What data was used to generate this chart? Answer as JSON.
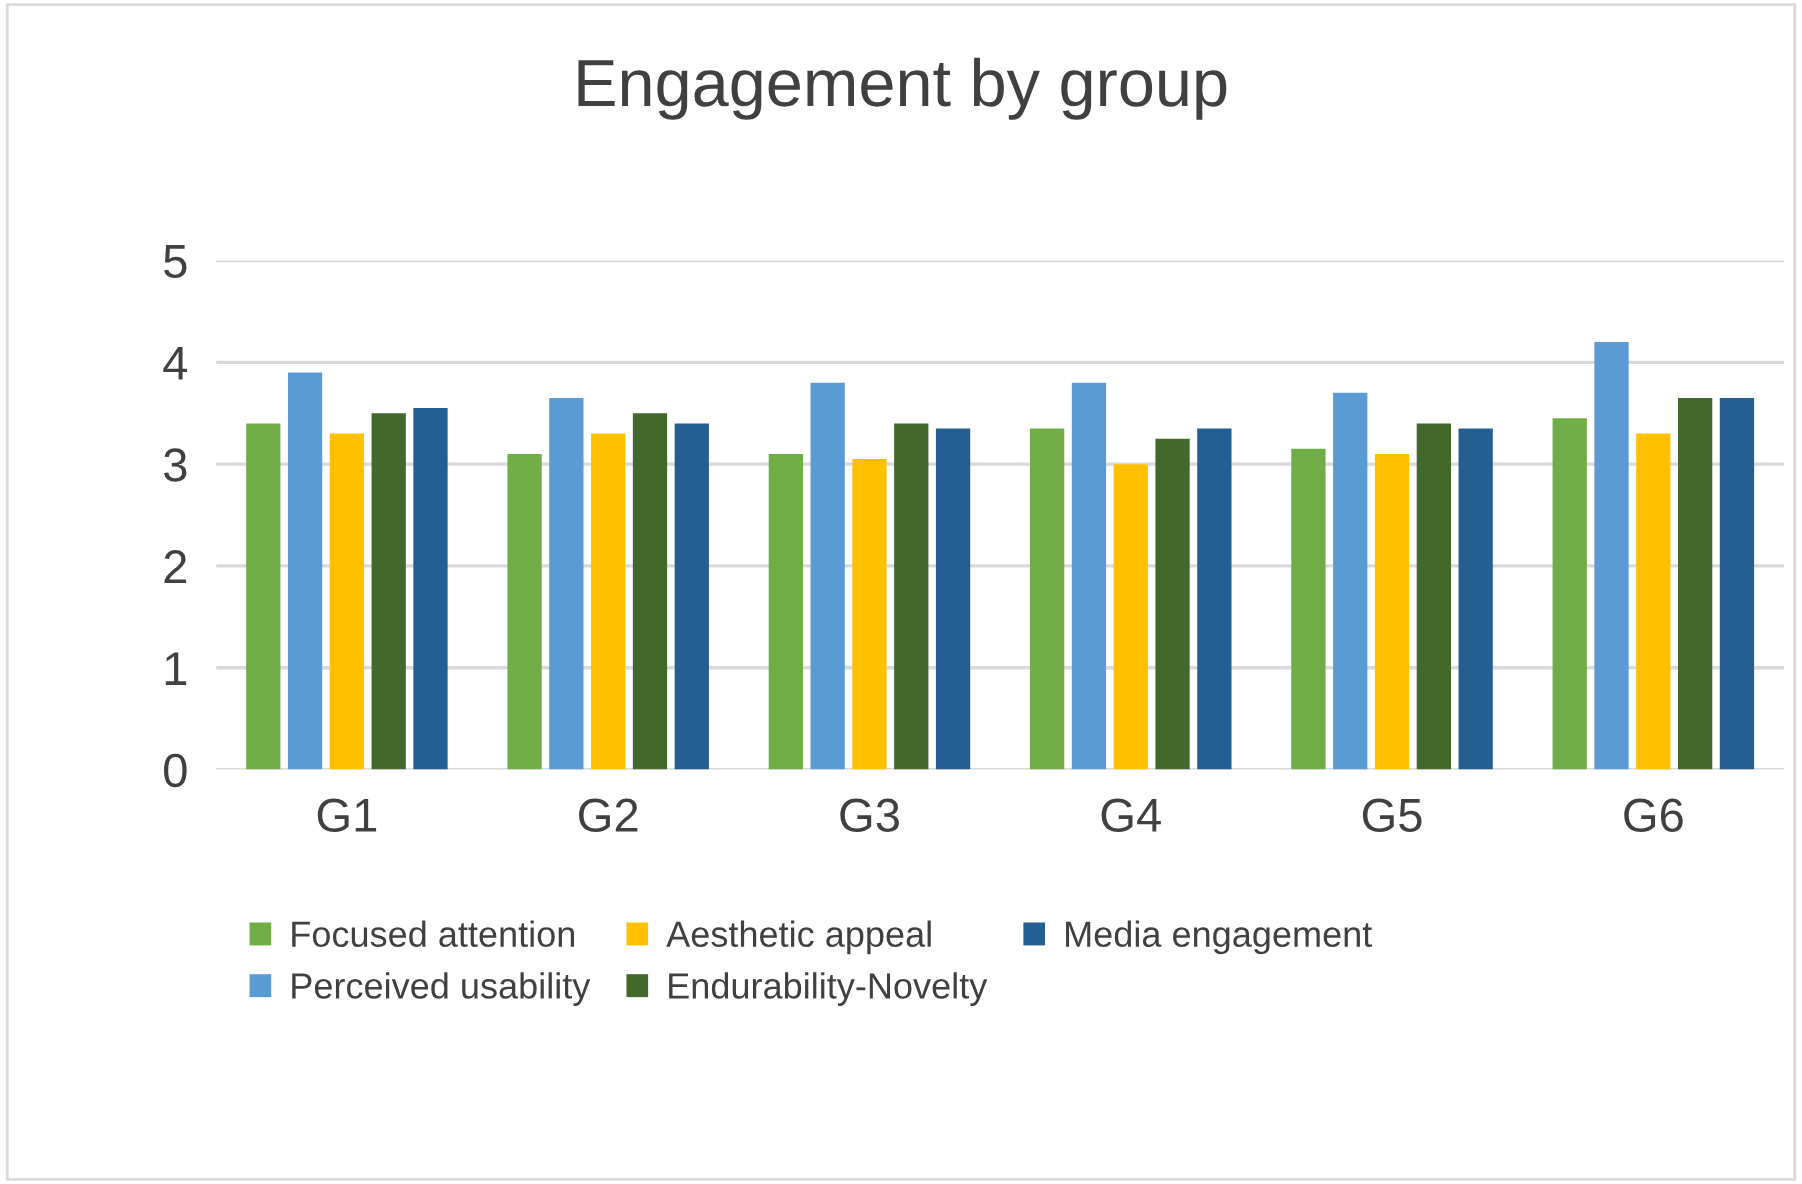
{
  "chart_data": {
    "type": "bar",
    "title": "Engagement by group",
    "categories": [
      "G1",
      "G2",
      "G3",
      "G4",
      "G5",
      "G6"
    ],
    "series": [
      {
        "name": "Focused attention",
        "color": "#70ad47",
        "values": [
          3.4,
          3.1,
          3.1,
          3.35,
          3.15,
          3.45
        ]
      },
      {
        "name": "Perceived usability",
        "color": "#5b9bd5",
        "values": [
          3.9,
          3.65,
          3.8,
          3.8,
          3.7,
          4.2
        ]
      },
      {
        "name": "Aesthetic appeal",
        "color": "#ffc000",
        "values": [
          3.3,
          3.3,
          3.05,
          3.0,
          3.1,
          3.3
        ]
      },
      {
        "name": "Endurability-Novelty",
        "color": "#43682b",
        "values": [
          3.5,
          3.5,
          3.4,
          3.25,
          3.4,
          3.65
        ]
      },
      {
        "name": "Media engagement",
        "color": "#255e91",
        "values": [
          3.55,
          3.4,
          3.35,
          3.35,
          3.35,
          3.65
        ]
      }
    ],
    "ylim": [
      0,
      5
    ],
    "yticks": [
      0,
      1,
      2,
      3,
      4,
      5
    ],
    "grid": "y",
    "legend": "bottom"
  }
}
